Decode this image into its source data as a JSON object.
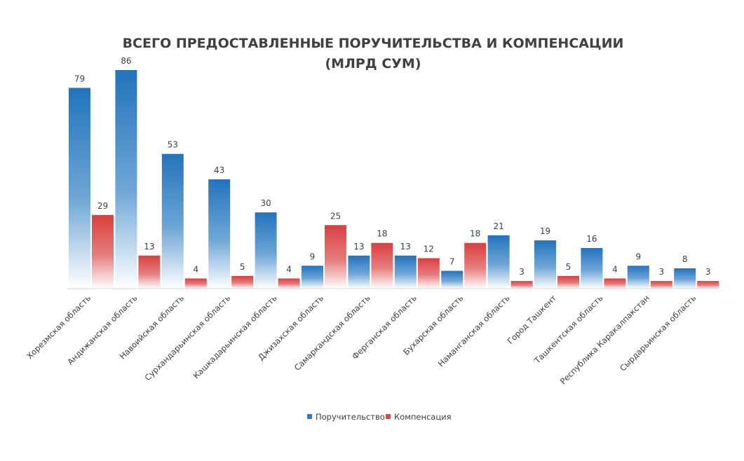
{
  "chart_data": {
    "type": "bar",
    "title_line1": "ВСЕГО ПРЕДОСТАВЛЕННЫЕ ПОРУЧИТЕЛЬСТВА И КОМПЕНСАЦИИ",
    "title_line2": "(МЛРД СУМ)",
    "categories": [
      "Хорезмская область",
      "Андижанская область",
      "Навоийская область",
      "Сурхандарьинская область",
      "Кашкадарьинская область",
      "Джизахская область",
      "Самаркандская область",
      "Ферганская область",
      "Бухарская область",
      "Наманганская область",
      "Город Ташкент",
      "Ташкентская область",
      "Республика Каракалпакстан",
      "Сырдарьинская область"
    ],
    "series": [
      {
        "name": "Поручительство",
        "color": "#2E7BC0",
        "values": [
          79,
          86,
          53,
          43,
          30,
          9,
          13,
          13,
          7,
          21,
          19,
          16,
          9,
          8
        ]
      },
      {
        "name": "Компенсация",
        "color": "#D94A4A",
        "values": [
          29,
          13,
          4,
          5,
          4,
          25,
          18,
          12,
          18,
          3,
          5,
          4,
          3,
          3
        ]
      }
    ],
    "ylim": [
      0,
      86
    ],
    "grid": false,
    "legend_position": "bottom",
    "data_labels": true
  }
}
